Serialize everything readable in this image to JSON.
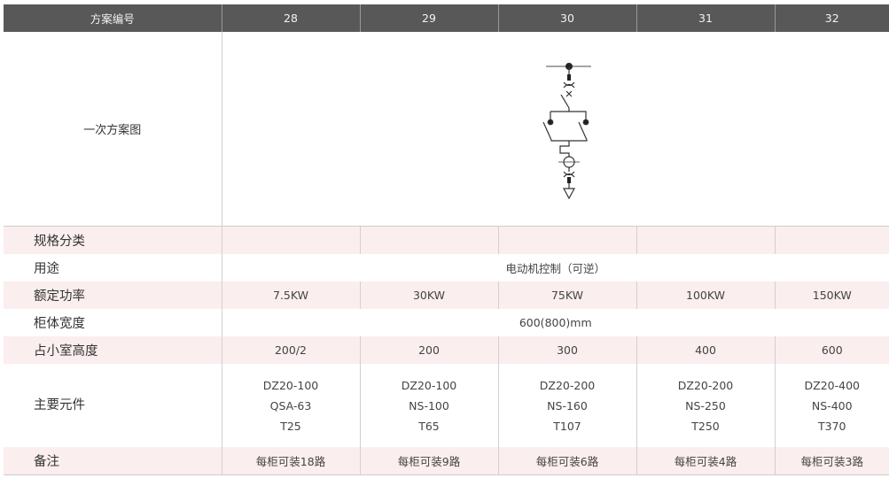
{
  "header": {
    "label": "方案编号",
    "schemes": [
      "28",
      "29",
      "30",
      "31",
      "32"
    ]
  },
  "diagram": {
    "label": "一次方案图"
  },
  "rows": {
    "spec": {
      "label": "规格分类"
    },
    "usage": {
      "label": "用途",
      "value": "电动机控制（可逆）"
    },
    "power": {
      "label": "额定功率",
      "values": [
        "7.5KW",
        "30KW",
        "75KW",
        "100KW",
        "150KW"
      ]
    },
    "width": {
      "label": "柜体宽度",
      "value": "600(800)mm"
    },
    "height": {
      "label": "占小室高度",
      "values": [
        "200/2",
        "200",
        "300",
        "400",
        "600"
      ]
    },
    "components": {
      "label": "主要元件",
      "values": [
        [
          "DZ20-100",
          "QSA-63",
          "T25"
        ],
        [
          "DZ20-100",
          "NS-100",
          "T65"
        ],
        [
          "DZ20-200",
          "NS-160",
          "T107"
        ],
        [
          "DZ20-200",
          "NS-250",
          "T250"
        ],
        [
          "DZ20-400",
          "NS-400",
          "T370"
        ]
      ]
    },
    "remarks": {
      "label": "备注",
      "values": [
        "每柜可装18路",
        "每柜可装9路",
        "每柜可装6路",
        "每柜可装4路",
        "每柜可装3路"
      ]
    }
  }
}
